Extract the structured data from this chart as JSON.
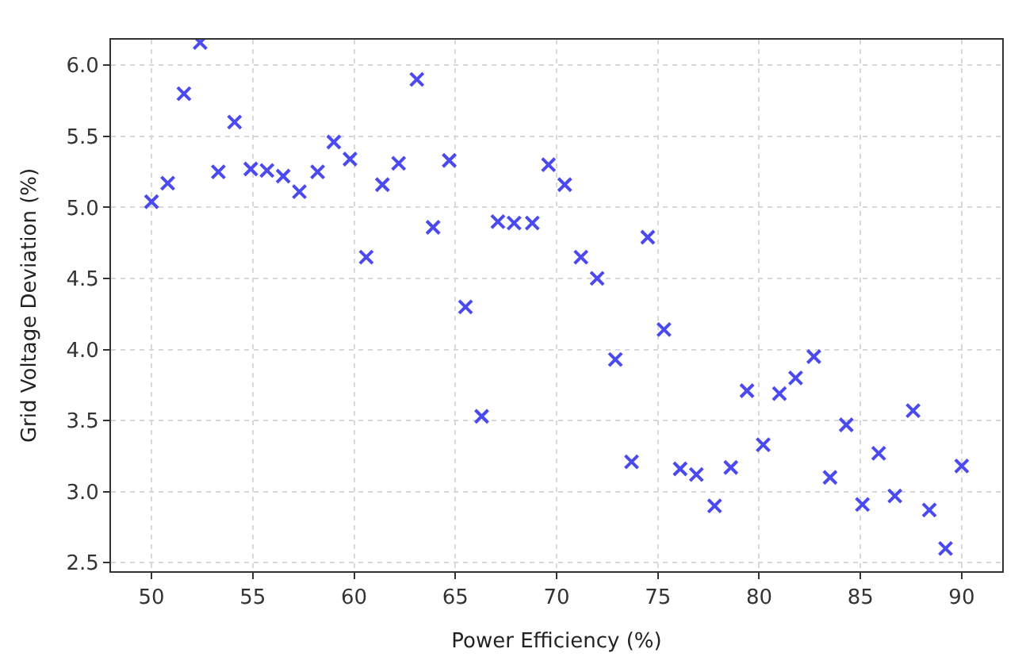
{
  "chart_data": {
    "type": "scatter",
    "xlabel": "Power Efficiency (%)",
    "ylabel": "Grid Voltage Deviation (%)",
    "marker": "cross",
    "grid": true,
    "xlim": [
      48.0,
      92.0
    ],
    "xticks": [
      50,
      55,
      60,
      65,
      70,
      75,
      80,
      85,
      90
    ],
    "ylim": [
      2.44,
      6.18
    ],
    "yticks": [
      {
        "value": 2.5,
        "label": "2.5"
      },
      {
        "value": 3,
        "label": "3.0"
      },
      {
        "value": 3.5,
        "label": "3.5"
      },
      {
        "value": 4,
        "label": "4.0"
      },
      {
        "value": 4.5,
        "label": "4.5"
      },
      {
        "value": 5,
        "label": "5.0"
      },
      {
        "value": 5.5,
        "label": "5.5"
      },
      {
        "value": 6,
        "label": "6.0"
      }
    ],
    "series": [
      {
        "color": "#4a4af0",
        "x": [
          50.0,
          50.8,
          51.6,
          52.4,
          53.3,
          54.1,
          54.9,
          55.7,
          56.5,
          57.3,
          58.2,
          59.0,
          59.8,
          60.6,
          61.4,
          62.2,
          63.1,
          63.9,
          64.7,
          65.5,
          66.3,
          67.1,
          67.9,
          68.8,
          69.6,
          70.4,
          71.2,
          72.0,
          72.9,
          73.7,
          74.5,
          75.3,
          76.1,
          76.9,
          77.8,
          78.6,
          79.4,
          80.2,
          81.0,
          81.8,
          82.7,
          83.5,
          84.3,
          85.1,
          85.9,
          86.7,
          87.6,
          88.4,
          89.2,
          90.0
        ],
        "values": [
          5.04,
          5.17,
          5.8,
          6.16,
          5.25,
          5.6,
          5.27,
          5.26,
          5.22,
          5.11,
          5.25,
          5.46,
          5.34,
          4.65,
          5.16,
          5.31,
          5.9,
          4.86,
          5.33,
          4.3,
          3.53,
          4.9,
          4.89,
          4.89,
          5.3,
          5.16,
          4.65,
          4.5,
          3.93,
          3.21,
          4.79,
          4.14,
          3.16,
          3.12,
          2.9,
          3.17,
          3.71,
          3.33,
          3.69,
          3.8,
          3.95,
          3.1,
          3.47,
          2.91,
          3.27,
          2.97,
          3.57,
          2.87,
          2.6,
          3.18
        ]
      }
    ]
  }
}
